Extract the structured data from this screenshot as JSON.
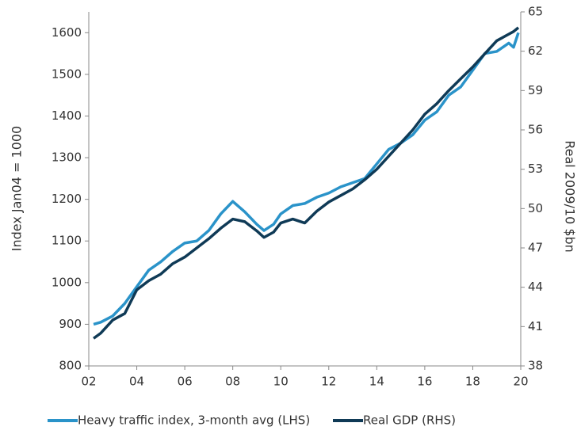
{
  "chart_data": {
    "type": "line",
    "y_label": "Index Jan04 = 1000",
    "y2_label": "Real 2009/10 $bn",
    "x": [
      2.2,
      2.5,
      3,
      3.5,
      4,
      4.5,
      5,
      5.5,
      6,
      6.5,
      7,
      7.5,
      8,
      8.5,
      9,
      9.3,
      9.7,
      10,
      10.5,
      11,
      11.5,
      12,
      12.5,
      13,
      13.5,
      14,
      14.5,
      15,
      15.5,
      16,
      16.5,
      17,
      17.5,
      18,
      18.5,
      19,
      19.5,
      19.7,
      19.9
    ],
    "series": [
      {
        "name": "Heavy traffic index, 3-month avg (LHS)",
        "color": "#2a93c9",
        "axis": "y",
        "values": [
          900,
          905,
          920,
          950,
          990,
          1030,
          1050,
          1075,
          1095,
          1100,
          1125,
          1165,
          1195,
          1170,
          1140,
          1125,
          1140,
          1165,
          1185,
          1190,
          1205,
          1215,
          1230,
          1240,
          1250,
          1285,
          1320,
          1335,
          1355,
          1390,
          1410,
          1450,
          1470,
          1510,
          1550,
          1555,
          1575,
          1565,
          1600
        ]
      },
      {
        "name": "Real GDP (RHS)",
        "color": "#0f3a56",
        "axis": "y2",
        "values": [
          40.1,
          40.5,
          41.5,
          42,
          43.8,
          44.5,
          45,
          45.8,
          46.3,
          47,
          47.7,
          48.5,
          49.2,
          49,
          48.3,
          47.8,
          48.2,
          48.9,
          49.2,
          48.9,
          49.8,
          50.5,
          51,
          51.5,
          52.2,
          53,
          54,
          55,
          56,
          57.2,
          58,
          59,
          59.9,
          60.8,
          61.8,
          62.8,
          63.3,
          63.5,
          63.8
        ]
      }
    ],
    "xlim": [
      2,
      20
    ],
    "xticks": [
      {
        "value": 2,
        "label": "02"
      },
      {
        "value": 4,
        "label": "04"
      },
      {
        "value": 6,
        "label": "06"
      },
      {
        "value": 8,
        "label": "08"
      },
      10,
      12,
      14,
      16,
      18,
      20
    ],
    "ylim": [
      800,
      1650
    ],
    "yticks": [
      800,
      900,
      1000,
      1100,
      1200,
      1300,
      1400,
      1500,
      1600
    ],
    "y2lim": [
      38,
      65
    ],
    "y2ticks": [
      38,
      41,
      44,
      47,
      50,
      53,
      56,
      59,
      62,
      65
    ],
    "legend": "bottom"
  }
}
